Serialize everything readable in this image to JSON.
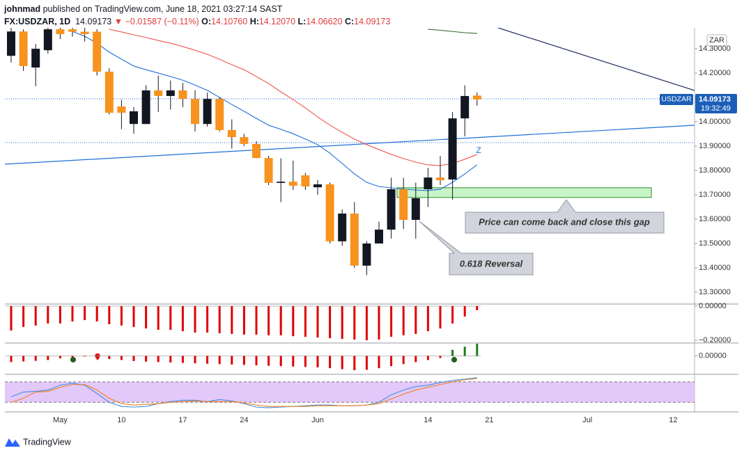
{
  "header": {
    "author": "johnmad",
    "published": "published on TradingView.com, June 18, 2021 03:27:14 SAST",
    "symbol": "FX:USDZAR, 1D",
    "price": "14.09173",
    "change": "▼ −0.01587 (−0.11%)",
    "ohlc": [
      {
        "label": "O:",
        "value": "14.10760"
      },
      {
        "label": "H:",
        "value": "14.12070"
      },
      {
        "label": "L:",
        "value": "14.06620"
      },
      {
        "label": "C:",
        "value": "14.09173"
      }
    ]
  },
  "footer": {
    "brand": "TradingView"
  },
  "chart_data": [
    {
      "type": "candlestick",
      "symbol_tag": "USDZAR",
      "countdown": "19:32:49",
      "currency": "ZAR",
      "annotations": {
        "gap": "Price can come back and close this gap",
        "reversal": "0.618 Reversal",
        "wave": "Z"
      },
      "up_color": "#131722",
      "down_color": "#f7931e",
      "categories": [
        null,
        null,
        null,
        null,
        "May",
        null,
        null,
        null,
        null,
        "10",
        null,
        null,
        null,
        null,
        "17",
        null,
        null,
        null,
        null,
        "24",
        null,
        null,
        null,
        null,
        null,
        "Jun",
        null,
        null,
        null,
        null,
        null,
        null,
        null,
        null,
        "14",
        null,
        null,
        null,
        null,
        "21",
        null,
        null,
        null,
        null,
        null,
        null,
        null,
        "Jul",
        null,
        null,
        null,
        null,
        null,
        null,
        "12",
        null
      ],
      "open": [
        14.271,
        14.371,
        14.223,
        14.294,
        14.38,
        14.38,
        14.37,
        14.37,
        14.206,
        14.063,
        13.991,
        13.991,
        14.129,
        14.106,
        14.129,
        14.094,
        13.991,
        14.094,
        13.966,
        13.937,
        13.909,
        13.851,
        13.749,
        13.754,
        13.78,
        13.731,
        13.743,
        13.509,
        13.623,
        13.409,
        13.5,
        13.557,
        13.723,
        13.597,
        13.723,
        13.771,
        13.763,
        14.014,
        14.1076,
        null,
        null,
        null,
        null,
        null,
        null,
        null,
        null,
        null,
        null,
        null,
        null,
        null,
        null,
        null,
        null,
        null
      ],
      "high": [
        14.386,
        14.38,
        14.32,
        14.4,
        14.4,
        14.4,
        14.39,
        14.38,
        14.22,
        14.09,
        14.06,
        14.15,
        14.19,
        14.17,
        14.16,
        14.13,
        14.12,
        14.1,
        14.01,
        13.95,
        13.92,
        13.86,
        13.85,
        13.84,
        13.79,
        13.76,
        13.75,
        13.64,
        13.67,
        13.51,
        13.59,
        13.77,
        13.77,
        13.75,
        13.81,
        13.86,
        14.04,
        14.15,
        14.1207,
        null,
        null,
        null,
        null,
        null,
        null,
        null,
        null,
        null,
        null,
        null,
        null,
        null,
        null,
        null,
        null,
        null
      ],
      "low": [
        14.243,
        14.209,
        14.146,
        14.28,
        14.34,
        14.35,
        14.33,
        14.19,
        14.03,
        13.97,
        13.951,
        13.99,
        14.04,
        14.05,
        14.06,
        13.96,
        13.98,
        13.96,
        13.89,
        13.9,
        13.85,
        13.74,
        13.67,
        13.72,
        13.72,
        13.7,
        13.5,
        13.49,
        13.4,
        13.37,
        13.5,
        13.52,
        13.56,
        13.52,
        13.65,
        13.74,
        13.68,
        13.94,
        14.0662,
        null,
        null,
        null,
        null,
        null,
        null,
        null,
        null,
        null,
        null,
        null,
        null,
        null,
        null,
        null,
        null,
        null
      ],
      "close": [
        14.371,
        14.229,
        14.3,
        14.38,
        14.36,
        14.37,
        14.36,
        14.206,
        14.037,
        14.037,
        14.043,
        14.129,
        14.106,
        14.129,
        14.094,
        13.991,
        14.094,
        13.966,
        13.937,
        13.909,
        13.851,
        13.749,
        13.754,
        13.737,
        13.734,
        13.743,
        13.509,
        13.623,
        13.409,
        13.5,
        13.557,
        13.723,
        13.597,
        13.686,
        13.771,
        13.76,
        14.014,
        14.106,
        14.0917,
        null,
        null,
        null,
        null,
        null,
        null,
        null,
        null,
        null,
        null,
        null,
        null,
        null,
        null,
        null,
        null,
        null
      ],
      "series": [
        {
          "color": "#1e6fd9",
          "values": [
            null,
            null,
            null,
            null,
            null,
            14.371,
            14.351,
            14.323,
            14.286,
            14.257,
            14.229,
            14.214,
            14.2,
            14.186,
            14.171,
            14.151,
            14.129,
            14.1,
            14.071,
            14.043,
            14.014,
            13.986,
            13.969,
            13.951,
            13.929,
            13.906,
            13.871,
            13.829,
            13.786,
            13.751,
            13.734,
            13.729,
            13.723,
            13.72,
            13.717,
            13.723,
            13.751,
            13.786,
            13.823,
            null,
            null,
            null,
            null,
            null,
            null,
            null,
            null,
            null,
            null,
            null,
            null,
            null,
            null,
            null,
            null,
            null
          ]
        },
        {
          "color": "#f2544f",
          "values": [
            null,
            null,
            null,
            null,
            null,
            null,
            null,
            null,
            14.38,
            14.369,
            14.357,
            14.346,
            14.334,
            14.323,
            14.309,
            14.294,
            14.277,
            14.257,
            14.234,
            14.214,
            14.186,
            14.157,
            14.123,
            14.091,
            14.057,
            14.02,
            13.986,
            13.957,
            13.929,
            13.906,
            13.886,
            13.866,
            13.849,
            13.834,
            13.823,
            13.82,
            13.829,
            13.846,
            13.866,
            null,
            null,
            null,
            null,
            null,
            null,
            null,
            null,
            null,
            null,
            null,
            null,
            null,
            null,
            null,
            null,
            null
          ]
        },
        {
          "color": "#2e6b2e",
          "values": [
            null,
            null,
            null,
            null,
            null,
            null,
            null,
            null,
            null,
            null,
            null,
            null,
            null,
            null,
            null,
            null,
            null,
            null,
            null,
            null,
            null,
            null,
            null,
            null,
            null,
            null,
            null,
            null,
            null,
            null,
            null,
            null,
            null,
            null,
            14.38,
            14.376,
            14.371,
            14.366,
            14.363,
            null,
            null,
            null,
            null,
            null,
            null,
            null,
            null,
            null,
            null,
            null,
            null,
            null,
            null,
            null,
            null,
            null
          ]
        }
      ],
      "zone": {
        "low": 13.689,
        "high": 13.729,
        "color": "#c8f5c8"
      },
      "ylim": [
        13.257,
        14.386
      ],
      "yticks": [
        {
          "value": 13.3,
          "label": "13.30000"
        },
        {
          "value": 13.4,
          "label": "13.40000"
        },
        {
          "value": 13.5,
          "label": "13.50000"
        },
        {
          "value": 13.6,
          "label": "13.60000"
        },
        {
          "value": 13.7,
          "label": "13.70000"
        },
        {
          "value": 13.8,
          "label": "13.80000"
        },
        {
          "value": 13.9,
          "label": "13.90000"
        },
        {
          "value": 14.0,
          "label": "14.00000"
        },
        {
          "value": 14.1,
          "label": "14.10000"
        },
        {
          "value": 14.2,
          "label": "14.20000"
        },
        {
          "value": 14.3,
          "label": "14.30000"
        }
      ]
    },
    {
      "type": "bar",
      "color": "#e00000",
      "values": [
        -0.143,
        -0.122,
        -0.114,
        -0.102,
        -0.102,
        -0.09,
        -0.082,
        -0.09,
        -0.106,
        -0.114,
        -0.122,
        -0.131,
        -0.139,
        -0.139,
        -0.147,
        -0.155,
        -0.155,
        -0.159,
        -0.163,
        -0.167,
        -0.167,
        -0.171,
        -0.171,
        -0.176,
        -0.18,
        -0.184,
        -0.188,
        -0.192,
        -0.196,
        -0.2,
        -0.196,
        -0.18,
        -0.171,
        -0.163,
        -0.147,
        -0.131,
        -0.102,
        -0.061,
        -0.024
      ],
      "ylim": [
        -0.216,
        0.012
      ],
      "yticks": [
        {
          "value": 0,
          "label": "0.00000"
        },
        {
          "value": -0.2,
          "label": "−0.20000"
        }
      ]
    },
    {
      "type": "bar",
      "up_color": "#1e7b1e",
      "down_color": "#e00000",
      "values": [
        -0.03,
        -0.027,
        -0.024,
        -0.02,
        -0.012,
        -0.006,
        -0.003,
        0.002,
        -0.015,
        -0.02,
        -0.025,
        -0.028,
        -0.03,
        -0.032,
        -0.034,
        -0.036,
        -0.038,
        -0.04,
        -0.042,
        -0.044,
        -0.046,
        -0.048,
        -0.05,
        -0.052,
        -0.054,
        -0.056,
        -0.06,
        -0.065,
        -0.07,
        -0.068,
        -0.06,
        -0.05,
        -0.04,
        -0.03,
        -0.02,
        -0.01,
        0.03,
        0.045,
        0.06
      ],
      "ylim": [
        -0.09,
        0.06
      ],
      "yticks": [
        {
          "value": 0,
          "label": "0.00000"
        }
      ]
    },
    {
      "type": "line",
      "band": [
        20,
        80
      ],
      "band_color": "#e3c8fa",
      "series": [
        {
          "color": "#3d8fe0",
          "values": [
            36,
            50,
            52,
            56,
            70,
            76,
            70,
            46,
            20,
            8,
            6,
            8,
            16,
            22,
            26,
            26,
            22,
            28,
            24,
            16,
            6,
            4,
            6,
            8,
            10,
            12,
            12,
            10,
            10,
            12,
            20,
            42,
            56,
            66,
            70,
            78,
            84,
            88,
            92
          ]
        },
        {
          "color": "#f08020",
          "values": [
            20,
            32,
            50,
            52,
            64,
            72,
            72,
            56,
            32,
            16,
            12,
            14,
            16,
            20,
            22,
            24,
            22,
            22,
            22,
            18,
            12,
            8,
            8,
            8,
            8,
            10,
            10,
            10,
            10,
            12,
            16,
            30,
            44,
            56,
            64,
            72,
            80,
            86,
            90
          ]
        }
      ],
      "ylim": [
        -8,
        100
      ]
    }
  ]
}
